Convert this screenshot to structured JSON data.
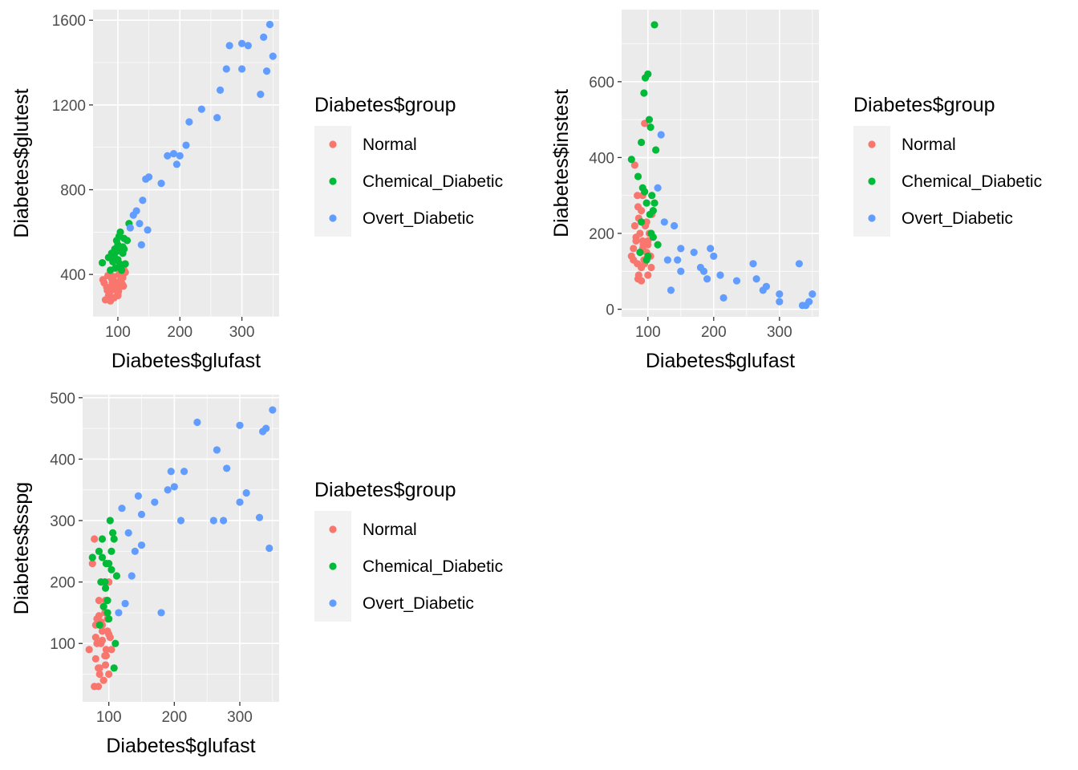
{
  "colors": {
    "panel_bg": "#EBEBEB",
    "grid": "#FFFFFF",
    "tick": "#333333",
    "tick_label": "#4D4D4D",
    "legend_key_bg": "#F2F2F2"
  },
  "legend": {
    "title": "Diabetes$group",
    "entries": [
      {
        "label": "Normal",
        "color": "#F8766D"
      },
      {
        "label": "Chemical_Diabetic",
        "color": "#00BA38"
      },
      {
        "label": "Overt_Diabetic",
        "color": "#619CFF"
      }
    ]
  },
  "chart_data": [
    {
      "type": "scatter",
      "title": "",
      "xlabel": "Diabetes$glufast",
      "ylabel": "Diabetes$glutest",
      "xlim": [
        60,
        360
      ],
      "ylim": [
        200,
        1650
      ],
      "xticks": [
        100,
        200,
        300
      ],
      "yticks": [
        400,
        800,
        1200,
        1600
      ],
      "grid": true,
      "legend_position": "right",
      "series": [
        {
          "name": "Normal",
          "color": "#F8766D",
          "x": [
            78,
            82,
            85,
            88,
            90,
            92,
            94,
            96,
            98,
            100,
            102,
            104,
            106,
            108,
            110,
            80,
            84,
            86,
            90,
            95,
            99,
            103,
            107,
            112,
            76,
            88,
            93,
            97,
            101,
            105,
            83,
            91,
            100,
            109,
            87
          ],
          "y": [
            360,
            340,
            300,
            320,
            380,
            350,
            290,
            330,
            360,
            310,
            400,
            370,
            345,
            385,
            420,
            280,
            395,
            310,
            330,
            365,
            300,
            340,
            355,
            410,
            375,
            275,
            390,
            345,
            320,
            380,
            325,
            360,
            300,
            345,
            330
          ]
        },
        {
          "name": "Chemical_Diabetic",
          "color": "#00BA38",
          "x": [
            75,
            85,
            90,
            95,
            98,
            100,
            102,
            104,
            106,
            108,
            110,
            112,
            115,
            92,
            96,
            100,
            105,
            108,
            118,
            88,
            94,
            99,
            103,
            110
          ],
          "y": [
            455,
            480,
            500,
            520,
            560,
            540,
            580,
            600,
            420,
            500,
            520,
            450,
            560,
            460,
            430,
            470,
            440,
            530,
            640,
            420,
            490,
            510,
            450,
            570
          ]
        },
        {
          "name": "Overt_Diabetic",
          "color": "#619CFF",
          "x": [
            120,
            125,
            130,
            135,
            140,
            145,
            150,
            170,
            180,
            190,
            195,
            200,
            210,
            215,
            235,
            260,
            265,
            275,
            280,
            300,
            300,
            310,
            330,
            335,
            340,
            345,
            350,
            138,
            148
          ],
          "y": [
            620,
            680,
            700,
            640,
            750,
            850,
            860,
            830,
            960,
            970,
            920,
            960,
            1010,
            1120,
            1180,
            1140,
            1270,
            1370,
            1480,
            1490,
            1370,
            1480,
            1250,
            1520,
            1360,
            1580,
            1430,
            540,
            610
          ]
        }
      ]
    },
    {
      "type": "scatter",
      "title": "",
      "xlabel": "Diabetes$glufast",
      "ylabel": "Diabetes$instest",
      "xlim": [
        60,
        360
      ],
      "ylim": [
        -20,
        790
      ],
      "xticks": [
        100,
        200,
        300
      ],
      "yticks": [
        0,
        200,
        400,
        600
      ],
      "grid": true,
      "legend_position": "right",
      "series": [
        {
          "name": "Normal",
          "color": "#F8766D",
          "x": [
            75,
            78,
            80,
            82,
            84,
            85,
            86,
            88,
            88,
            90,
            90,
            92,
            92,
            94,
            95,
            96,
            98,
            100,
            100,
            102,
            104,
            106,
            80,
            84,
            90,
            95,
            100,
            105,
            78,
            86,
            92,
            98,
            85,
            93,
            82
          ],
          "y": [
            140,
            160,
            220,
            180,
            120,
            80,
            240,
            150,
            200,
            260,
            110,
            300,
            180,
            130,
            490,
            220,
            150,
            170,
            90,
            200,
            140,
            250,
            380,
            300,
            75,
            120,
            180,
            110,
            130,
            90,
            160,
            230,
            270,
            170,
            190
          ]
        },
        {
          "name": "Chemical_Diabetic",
          "color": "#00BA38",
          "x": [
            75,
            85,
            90,
            92,
            94,
            96,
            98,
            100,
            102,
            104,
            106,
            108,
            110,
            112,
            115,
            90,
            95,
            100,
            105,
            110,
            88,
            98,
            103,
            108
          ],
          "y": [
            395,
            350,
            440,
            320,
            570,
            610,
            280,
            620,
            500,
            480,
            300,
            260,
            750,
            420,
            170,
            230,
            310,
            140,
            200,
            280,
            150,
            130,
            250,
            190
          ]
        },
        {
          "name": "Overt_Diabetic",
          "color": "#619CFF",
          "x": [
            115,
            120,
            125,
            130,
            135,
            140,
            145,
            150,
            170,
            180,
            190,
            195,
            200,
            210,
            215,
            235,
            260,
            265,
            275,
            280,
            300,
            300,
            330,
            335,
            340,
            345,
            350,
            150,
            185
          ],
          "y": [
            320,
            460,
            230,
            130,
            50,
            220,
            130,
            100,
            150,
            110,
            80,
            160,
            140,
            90,
            30,
            75,
            120,
            80,
            50,
            60,
            20,
            40,
            120,
            10,
            10,
            20,
            40,
            160,
            100
          ]
        }
      ]
    },
    {
      "type": "scatter",
      "title": "",
      "xlabel": "Diabetes$glufast",
      "ylabel": "Diabetes$sspg",
      "xlim": [
        60,
        360
      ],
      "ylim": [
        5,
        505
      ],
      "xticks": [
        100,
        200,
        300
      ],
      "yticks": [
        100,
        200,
        300,
        400,
        500
      ],
      "grid": true,
      "legend_position": "right",
      "series": [
        {
          "name": "Normal",
          "color": "#F8766D",
          "x": [
            70,
            75,
            78,
            80,
            82,
            84,
            85,
            86,
            88,
            90,
            92,
            94,
            95,
            96,
            98,
            100,
            102,
            100,
            104,
            80,
            84,
            88,
            92,
            96,
            78,
            82,
            86,
            90,
            94,
            98,
            80,
            85,
            90,
            95,
            100
          ],
          "y": [
            90,
            230,
            270,
            130,
            140,
            30,
            170,
            60,
            100,
            120,
            40,
            150,
            170,
            80,
            140,
            200,
            110,
            50,
            90,
            110,
            60,
            135,
            160,
            90,
            30,
            100,
            50,
            130,
            80,
            120,
            75,
            145,
            105,
            65,
            115
          ]
        },
        {
          "name": "Chemical_Diabetic",
          "color": "#00BA38",
          "x": [
            75,
            85,
            88,
            90,
            92,
            95,
            96,
            98,
            100,
            102,
            104,
            106,
            108,
            110,
            112,
            86,
            94,
            100,
            108,
            98,
            90,
            104
          ],
          "y": [
            240,
            250,
            200,
            270,
            160,
            190,
            230,
            150,
            230,
            300,
            250,
            280,
            60,
            100,
            210,
            130,
            200,
            140,
            270,
            170,
            240,
            220
          ]
        },
        {
          "name": "Overt_Diabetic",
          "color": "#619CFF",
          "x": [
            115,
            120,
            125,
            130,
            135,
            140,
            145,
            150,
            170,
            180,
            190,
            195,
            200,
            210,
            215,
            235,
            260,
            265,
            275,
            280,
            300,
            300,
            310,
            330,
            335,
            340,
            345,
            350,
            150
          ],
          "y": [
            150,
            320,
            165,
            280,
            210,
            250,
            340,
            260,
            330,
            150,
            350,
            380,
            355,
            300,
            380,
            460,
            300,
            415,
            300,
            385,
            455,
            330,
            345,
            305,
            445,
            450,
            255,
            480,
            310
          ]
        }
      ]
    }
  ]
}
